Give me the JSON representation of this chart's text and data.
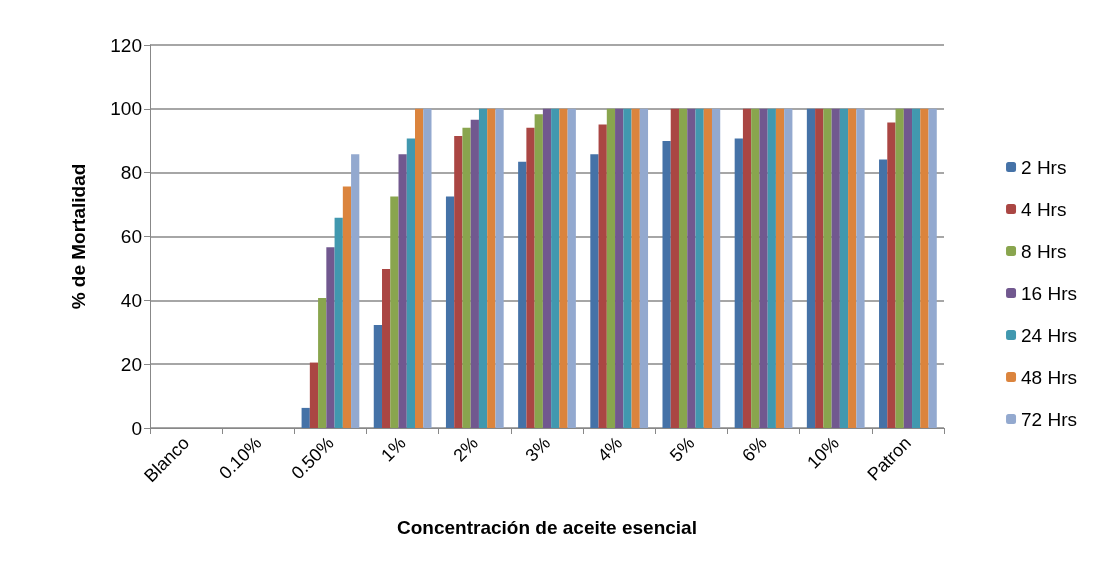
{
  "chart_data": {
    "type": "bar",
    "xlabel": "Concentración de aceite esencial",
    "ylabel": "% de Mortalidad",
    "categories": [
      "Blanco",
      "0.10%",
      "0.50%",
      "1%",
      "2%",
      "3%",
      "4%",
      "5%",
      "6%",
      "10%",
      "Patron"
    ],
    "series": [
      {
        "name": "2 Hrs",
        "color": "#4572a7",
        "values": [
          0,
          0,
          6.3,
          32.3,
          72.5,
          83.4,
          85.8,
          89.9,
          90.7,
          100,
          84.1
        ]
      },
      {
        "name": "4 Hrs",
        "color": "#aa4643",
        "values": [
          0,
          0,
          20.5,
          49.8,
          91.5,
          94.1,
          95.1,
          100,
          100,
          100,
          95.7
        ]
      },
      {
        "name": "8 Hrs",
        "color": "#89a54e",
        "values": [
          0,
          0,
          40.7,
          72.5,
          94.1,
          98.3,
          100,
          100,
          100,
          100,
          100
        ]
      },
      {
        "name": "16 Hrs",
        "color": "#71588f",
        "values": [
          0,
          0,
          56.6,
          85.8,
          96.6,
          100,
          100,
          100,
          100,
          100,
          100
        ]
      },
      {
        "name": "24 Hrs",
        "color": "#4198af",
        "values": [
          0,
          0,
          65.9,
          90.7,
          100,
          100,
          100,
          100,
          100,
          100,
          100
        ]
      },
      {
        "name": "48 Hrs",
        "color": "#db843d",
        "values": [
          0,
          0,
          75.7,
          100,
          100,
          100,
          100,
          100,
          100,
          100,
          100
        ]
      },
      {
        "name": "72 Hrs",
        "color": "#93a9cf",
        "values": [
          0,
          0,
          85.8,
          100,
          100,
          100,
          100,
          100,
          100,
          100,
          100
        ]
      }
    ],
    "ylim": [
      0,
      120
    ],
    "yticks": [
      0,
      20,
      40,
      60,
      80,
      100,
      120
    ],
    "grid": "y",
    "legend": "right"
  }
}
